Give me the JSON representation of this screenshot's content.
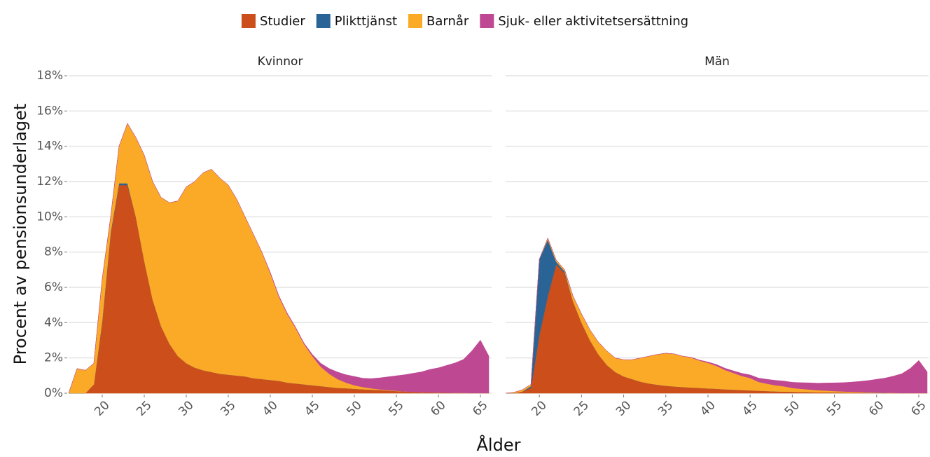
{
  "chart_data": [
    {
      "type": "stacked-area",
      "title": "Kvinnor",
      "ylabel": "Procent av pensionsunderlaget",
      "xlabel": "Ålder",
      "x": [
        16,
        17,
        18,
        19,
        20,
        21,
        22,
        23,
        24,
        25,
        26,
        27,
        28,
        29,
        30,
        31,
        32,
        33,
        34,
        35,
        36,
        37,
        38,
        39,
        40,
        41,
        42,
        43,
        44,
        45,
        46,
        47,
        48,
        49,
        50,
        51,
        52,
        53,
        54,
        55,
        56,
        57,
        58,
        59,
        60,
        61,
        62,
        63,
        64,
        65,
        66
      ],
      "xlim": [
        16,
        66
      ],
      "ylim": [
        0,
        18
      ],
      "xticks": [
        20,
        25,
        30,
        35,
        40,
        45,
        50,
        55,
        60,
        65
      ],
      "yticks": [
        {
          "value": 0,
          "label": "0%"
        },
        {
          "value": 2,
          "label": "2%"
        },
        {
          "value": 4,
          "label": "4%"
        },
        {
          "value": 6,
          "label": "6%"
        },
        {
          "value": 8,
          "label": "8%"
        },
        {
          "value": 10,
          "label": "10%"
        },
        {
          "value": 12,
          "label": "12%"
        },
        {
          "value": 14,
          "label": "14%"
        },
        {
          "value": 16,
          "label": "16%"
        },
        {
          "value": 18,
          "label": "18%"
        }
      ],
      "grid": true,
      "series": [
        {
          "name": "Studier",
          "color": "#cc4f1b",
          "values": [
            0,
            0,
            0,
            0.5,
            4,
            9,
            11.8,
            11.8,
            10,
            7.5,
            5.3,
            3.8,
            2.8,
            2.1,
            1.7,
            1.45,
            1.3,
            1.2,
            1.1,
            1.05,
            1,
            0.95,
            0.85,
            0.8,
            0.75,
            0.7,
            0.6,
            0.55,
            0.5,
            0.45,
            0.4,
            0.35,
            0.3,
            0.28,
            0.25,
            0.22,
            0.2,
            0.18,
            0.15,
            0.12,
            0.1,
            0.08,
            0.06,
            0.05,
            0.04,
            0.03,
            0.02,
            0.02,
            0.01,
            0.01,
            0.01
          ]
        },
        {
          "name": "Plikttjänst",
          "color": "#2a6496",
          "values": [
            0,
            0,
            0,
            0,
            0.1,
            0.1,
            0.1,
            0.1,
            0,
            0,
            0,
            0,
            0,
            0,
            0,
            0,
            0,
            0,
            0,
            0,
            0,
            0,
            0,
            0,
            0,
            0,
            0,
            0,
            0,
            0,
            0,
            0,
            0,
            0,
            0,
            0,
            0,
            0,
            0,
            0,
            0,
            0,
            0,
            0,
            0,
            0,
            0,
            0,
            0,
            0,
            0
          ]
        },
        {
          "name": "Barnår",
          "color": "#fbaa27",
          "values": [
            0,
            1.4,
            1.3,
            1.2,
            2.4,
            0.9,
            2.1,
            3.4,
            4.5,
            6,
            6.7,
            7.3,
            8,
            8.8,
            10,
            10.55,
            11.2,
            11.5,
            11.1,
            10.75,
            10,
            9.05,
            8.15,
            7.2,
            6.05,
            4.8,
            3.9,
            3.15,
            2.3,
            1.65,
            1.1,
            0.75,
            0.5,
            0.32,
            0.2,
            0.13,
            0.08,
            0.04,
            0.03,
            0.02,
            0,
            0,
            0,
            0,
            0,
            0,
            0,
            0,
            0,
            0,
            0
          ]
        },
        {
          "name": "Sjuk- eller aktivitetsersättning",
          "color": "#bf4893",
          "values": [
            0,
            0,
            0,
            0,
            0,
            0,
            0,
            0,
            0,
            0,
            0,
            0,
            0,
            0,
            0,
            0,
            0,
            0,
            0,
            0,
            0,
            0,
            0,
            0,
            0.05,
            0.05,
            0.05,
            0.05,
            0.05,
            0.1,
            0.2,
            0.3,
            0.4,
            0.45,
            0.5,
            0.5,
            0.55,
            0.65,
            0.75,
            0.85,
            0.95,
            1.05,
            1.15,
            1.3,
            1.4,
            1.55,
            1.7,
            1.9,
            2.4,
            3,
            2.1
          ]
        }
      ]
    },
    {
      "type": "stacked-area",
      "title": "Män",
      "x": [
        16,
        17,
        18,
        19,
        20,
        21,
        22,
        23,
        24,
        25,
        26,
        27,
        28,
        29,
        30,
        31,
        32,
        33,
        34,
        35,
        36,
        37,
        38,
        39,
        40,
        41,
        42,
        43,
        44,
        45,
        46,
        47,
        48,
        49,
        50,
        51,
        52,
        53,
        54,
        55,
        56,
        57,
        58,
        59,
        60,
        61,
        62,
        63,
        64,
        65,
        66
      ],
      "xlim": [
        16,
        66
      ],
      "ylim": [
        0,
        18
      ],
      "xticks": [
        20,
        25,
        30,
        35,
        40,
        45,
        50,
        55,
        60,
        65
      ],
      "yticks": [
        0,
        2,
        4,
        6,
        8,
        10,
        12,
        14,
        16,
        18
      ],
      "grid": true,
      "series": [
        {
          "name": "Studier",
          "color": "#cc4f1b",
          "values": [
            0,
            0,
            0.1,
            0.3,
            3.3,
            5.5,
            7.3,
            6.8,
            5.2,
            4,
            3,
            2.2,
            1.6,
            1.2,
            0.95,
            0.8,
            0.65,
            0.55,
            0.48,
            0.42,
            0.38,
            0.35,
            0.32,
            0.3,
            0.27,
            0.25,
            0.22,
            0.2,
            0.18,
            0.16,
            0.14,
            0.12,
            0.1,
            0.09,
            0.08,
            0.07,
            0.06,
            0.05,
            0.05,
            0.04,
            0.04,
            0.03,
            0.03,
            0.02,
            0.02,
            0.02,
            0.01,
            0.01,
            0.01,
            0.01,
            0.01
          ]
        },
        {
          "name": "Plikttjänst",
          "color": "#2a6496",
          "values": [
            0,
            0,
            0,
            0.1,
            4.3,
            3.2,
            0.15,
            0.1,
            0,
            0,
            0,
            0,
            0,
            0,
            0,
            0,
            0,
            0,
            0,
            0,
            0,
            0,
            0,
            0,
            0,
            0,
            0,
            0,
            0,
            0,
            0,
            0,
            0,
            0,
            0,
            0,
            0,
            0,
            0,
            0,
            0,
            0,
            0,
            0,
            0,
            0,
            0,
            0,
            0,
            0,
            0
          ]
        },
        {
          "name": "Barnår",
          "color": "#fbaa27",
          "values": [
            0,
            0.05,
            0.1,
            0.1,
            0,
            0.1,
            0.1,
            0.1,
            0.3,
            0.5,
            0.6,
            0.7,
            0.8,
            0.8,
            0.95,
            1.1,
            1.35,
            1.55,
            1.72,
            1.85,
            1.85,
            1.75,
            1.7,
            1.55,
            1.45,
            1.3,
            1.1,
            0.95,
            0.8,
            0.7,
            0.5,
            0.42,
            0.35,
            0.3,
            0.22,
            0.18,
            0.15,
            0.12,
            0.1,
            0.08,
            0.06,
            0.05,
            0.04,
            0.03,
            0.02,
            0.01,
            0.01,
            0,
            0,
            0,
            0
          ]
        },
        {
          "name": "Sjuk- eller aktivitetsersättning",
          "color": "#bf4893",
          "values": [
            0,
            0,
            0,
            0,
            0,
            0,
            0,
            0,
            0,
            0,
            0,
            0,
            0,
            0,
            0,
            0,
            0,
            0,
            0,
            0,
            0,
            0,
            0.02,
            0.03,
            0.05,
            0.08,
            0.1,
            0.12,
            0.15,
            0.18,
            0.22,
            0.25,
            0.28,
            0.3,
            0.32,
            0.35,
            0.38,
            0.4,
            0.43,
            0.47,
            0.5,
            0.55,
            0.6,
            0.67,
            0.75,
            0.83,
            0.95,
            1.1,
            1.4,
            1.85,
            1.2
          ]
        }
      ]
    }
  ]
}
